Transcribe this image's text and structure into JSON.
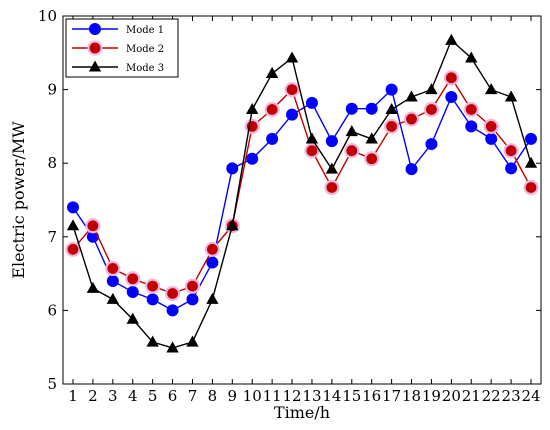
{
  "chart_data": {
    "type": "line",
    "title": "",
    "xlabel": "Time/h",
    "ylabel": "Electric power/MW",
    "x": [
      1,
      2,
      3,
      4,
      5,
      6,
      7,
      8,
      9,
      10,
      11,
      12,
      13,
      14,
      15,
      16,
      17,
      18,
      19,
      20,
      21,
      22,
      23,
      24
    ],
    "xlim": [
      1,
      24
    ],
    "ylim": [
      5,
      10
    ],
    "yticks": [
      5,
      6,
      7,
      8,
      9,
      10
    ],
    "grid": false,
    "legend": "top-left",
    "series": [
      {
        "name": "Mode 1",
        "color": "#0000ff",
        "marker": "circle",
        "values": [
          7.4,
          7.0,
          6.4,
          6.25,
          6.15,
          6.0,
          6.15,
          6.65,
          7.93,
          8.06,
          8.33,
          8.66,
          8.82,
          8.3,
          8.74,
          8.74,
          9.0,
          7.92,
          8.26,
          8.9,
          8.5,
          8.33,
          7.93,
          8.33
        ]
      },
      {
        "name": "Mode 2",
        "color": "#c00000",
        "marker": "circle",
        "values": [
          6.83,
          7.15,
          6.57,
          6.43,
          6.33,
          6.23,
          6.33,
          6.83,
          7.15,
          8.5,
          8.73,
          9.0,
          8.17,
          7.67,
          8.17,
          8.06,
          8.5,
          8.6,
          8.73,
          9.16,
          8.73,
          8.5,
          8.17,
          7.67
        ]
      },
      {
        "name": "Mode 3",
        "color": "#000000",
        "marker": "triangle",
        "values": [
          7.15,
          6.3,
          6.15,
          5.88,
          5.57,
          5.49,
          5.57,
          6.15,
          7.15,
          8.73,
          9.22,
          9.43,
          8.33,
          7.92,
          8.43,
          8.33,
          8.73,
          8.9,
          9.0,
          9.67,
          9.43,
          9.0,
          8.9,
          8.0
        ]
      }
    ]
  }
}
